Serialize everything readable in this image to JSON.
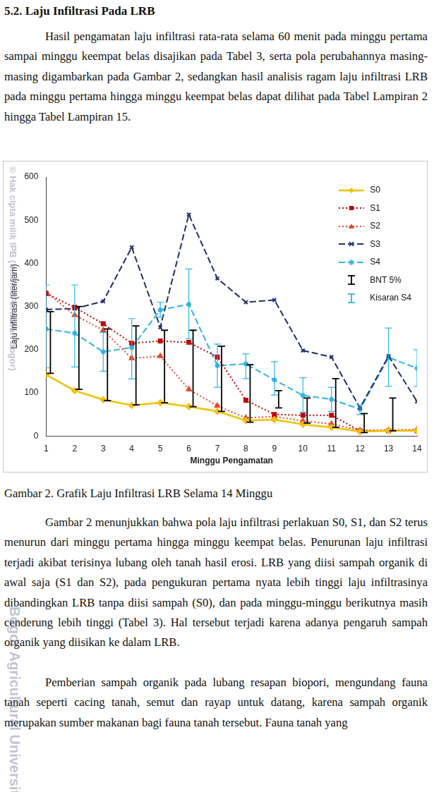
{
  "heading": "5.2. Laju Infiltrasi Pada LRB",
  "paragraphs": [
    "Hasil pengamatan laju infiltrasi rata-rata selama 60 menit pada minggu pertama sampai minggu keempat belas disajikan pada Tabel 3, serta pola perubahannya masing-masing digambarkan pada Gambar 2, sedangkan hasil analisis ragam laju infiltrasi LRB pada minggu pertama hingga minggu keempat belas dapat dilihat pada Tabel Lampiran 2 hingga Tabel Lampiran 15.",
    "Gambar 2 menunjukkan bahwa pola laju infiltrasi perlakuan S0, S1, dan S2 terus menurun dari minggu pertama hingga minggu keempat belas. Penurunan laju infiltrasi terjadi akibat terisinya lubang oleh tanah hasil erosi. LRB yang diisi sampah organik di awal saja (S1 dan S2), pada pengukuran pertama nyata lebih tinggi laju infiltrasinya dibandingkan LRB tanpa diisi sampah (S0), dan pada minggu-minggu berikutnya masih cenderung lebih tinggi (Tabel 3). Hal tersebut terjadi karena adanya pengaruh sampah organik yang diisikan ke dalam LRB.",
    "Pemberian sampah organik pada lubang resapan biopori, mengundang fauna tanah seperti cacing tanah, semut dan rayap untuk datang, karena sampah organik merupakan sumber makanan bagi fauna tanah tersebut. Fauna tanah yang"
  ],
  "caption": "Gambar 2. Grafik Laju Infiltrasi LRB Selama 14 Minggu",
  "watermark": [
    "© Hak cipta milik IPB (Institut Pertanian Bogor)",
    "Bogor Agricultural University"
  ],
  "chart_data": {
    "type": "line",
    "x_label": "Minggu Pengamatan",
    "y_label": "Laju infiltrasi (liter/jam)",
    "categories": [
      "1",
      "2",
      "3",
      "4",
      "5",
      "6",
      "7",
      "8",
      "9",
      "10",
      "11",
      "12",
      "13",
      "14"
    ],
    "series": [
      {
        "name": "S0",
        "color": "#f2c200",
        "marker": "diamond",
        "line_style": "solid",
        "values": [
          142,
          105,
          84,
          71,
          77,
          68,
          57,
          36,
          38,
          27,
          20,
          10,
          12,
          12
        ]
      },
      {
        "name": "S1",
        "color": "#c00000",
        "marker": "square",
        "line_style": "dotted",
        "values": [
          330,
          298,
          260,
          215,
          220,
          217,
          183,
          83,
          50,
          48,
          48,
          12,
          12,
          12
        ]
      },
      {
        "name": "S2",
        "color": "#e8472b",
        "marker": "triangle",
        "line_style": "dotted",
        "values": [
          333,
          280,
          245,
          180,
          185,
          108,
          70,
          42,
          45,
          35,
          28,
          13,
          14,
          15
        ]
      },
      {
        "name": "S3",
        "color": "#1f2f6e",
        "marker": "cross",
        "line_style": "dashed",
        "values": [
          293,
          295,
          312,
          437,
          252,
          513,
          365,
          310,
          315,
          198,
          183,
          65,
          185,
          80
        ]
      },
      {
        "name": "S4",
        "color": "#2fb4e6",
        "marker": "star",
        "line_style": "dashed",
        "values": [
          248,
          238,
          195,
          205,
          292,
          305,
          163,
          167,
          130,
          94,
          85,
          62,
          182,
          157
        ]
      }
    ],
    "error_bars": [
      {
        "name": "BNT 5%",
        "color": "#000000",
        "low": [
          145,
          108,
          82,
          72,
          77,
          68,
          57,
          32,
          65,
          30,
          20,
          8,
          12,
          22
        ],
        "high": [
          288,
          300,
          248,
          255,
          245,
          245,
          208,
          165,
          105,
          88,
          133,
          52,
          88,
          72
        ]
      },
      {
        "name": "Kisaran S4",
        "color": "#2fb4e6",
        "low": [
          158,
          160,
          150,
          132,
          275,
          225,
          113,
          133,
          95,
          55,
          57,
          50,
          115,
          115
        ],
        "high": [
          350,
          350,
          240,
          272,
          310,
          387,
          213,
          190,
          172,
          135,
          113,
          72,
          250,
          200
        ]
      }
    ],
    "ylim": [
      0,
      600
    ],
    "yticks": [
      0,
      100,
      200,
      300,
      400,
      500,
      600
    ],
    "grid": false,
    "legend": "upper right"
  }
}
